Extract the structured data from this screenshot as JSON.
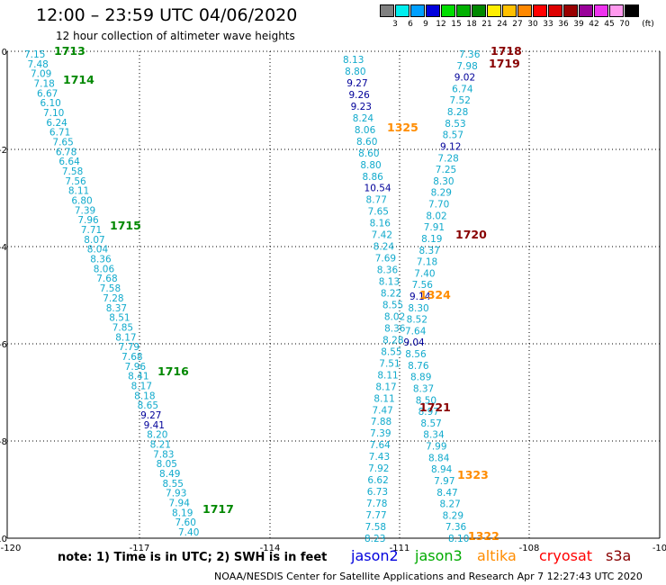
{
  "header": {
    "title": "12:00 – 23:59 UTC 04/06/2020",
    "subtitle": "12 hour collection of altimeter wave heights"
  },
  "legend": {
    "unit": "(ft)",
    "bins": [
      {
        "label": "3",
        "color": "#808080"
      },
      {
        "label": "6",
        "color": "#00eeee"
      },
      {
        "label": "9",
        "color": "#00a0ff"
      },
      {
        "label": "12",
        "color": "#0000dd"
      },
      {
        "label": "15",
        "color": "#00dd00"
      },
      {
        "label": "18",
        "color": "#00b000"
      },
      {
        "label": "21",
        "color": "#008800"
      },
      {
        "label": "24",
        "color": "#ffee00"
      },
      {
        "label": "27",
        "color": "#ffc000"
      },
      {
        "label": "30",
        "color": "#ff8800"
      },
      {
        "label": "33",
        "color": "#ff0000"
      },
      {
        "label": "36",
        "color": "#dd0000"
      },
      {
        "label": "39",
        "color": "#990000"
      },
      {
        "label": "42",
        "color": "#990099"
      },
      {
        "label": "45",
        "color": "#ee33ee"
      },
      {
        "label": "70",
        "color": "#ff99ee"
      },
      {
        "label": "",
        "color": "#000000"
      }
    ]
  },
  "axes": {
    "x_ticks": [
      "-120",
      "-117",
      "-114",
      "-111",
      "-108",
      "-10"
    ],
    "y_ticks": [
      "0",
      "-2",
      "-4",
      "-6",
      "-8",
      "-10"
    ]
  },
  "colors": {
    "cyan": "#11aacc",
    "navy": "#000099",
    "green": "#008800",
    "orange": "#ff8c00",
    "darkred": "#880000"
  },
  "tracks": {
    "t1": {
      "color": "cyan",
      "values": [
        "7.15",
        "7.48",
        "7.09",
        "7.18",
        "6.67",
        "6.10",
        "7.10",
        "6.24",
        "6.71",
        "7.65",
        "6.78",
        "6.64",
        "7.58",
        "7.56",
        "8.11",
        "6.80",
        "7.39",
        "7.96",
        "7.71",
        "8.07",
        "8.04",
        "8.36",
        "8.06",
        "7.68",
        "7.58",
        "7.28",
        "8.37",
        "8.51",
        "7.85",
        "8.17",
        "7.79",
        "7.68",
        "7.96",
        "8.41",
        "8.17",
        "8.18",
        "8.65",
        "9.27",
        "9.41",
        "8.20",
        "8.21",
        "7.83",
        "8.05",
        "8.49",
        "8.55",
        "7.93",
        "7.94",
        "8.19",
        "7.60",
        "7.40"
      ]
    },
    "t2": {
      "color": "cyan",
      "values": [
        "8.13",
        "8.80",
        "9.27",
        "9.26",
        "9.23",
        "8.24",
        "8.06",
        "8.60",
        "8.60",
        "8.80",
        "8.86",
        "10.54",
        "8.77",
        "7.65",
        "8.16",
        "7.42",
        "8.24",
        "7.69",
        "8.36",
        "8.13",
        "8.22",
        "8.55",
        "8.02",
        "8.36",
        "8.28",
        "8.55",
        "7.51",
        "8.11",
        "8.17",
        "8.11",
        "7.47",
        "7.88",
        "7.39",
        "7.64",
        "7.43",
        "7.92",
        "6.62",
        "6.73",
        "7.78",
        "7.77",
        "7.58",
        "8.23"
      ]
    },
    "t3": {
      "color": "cyan",
      "values": [
        "7.36",
        "7.98",
        "9.02",
        "6.74",
        "7.52",
        "8.28",
        "8.53",
        "8.57",
        "9.12",
        "7.28",
        "7.25",
        "8.30",
        "8.29",
        "7.70",
        "8.02",
        "7.91",
        "8.19",
        "8.37",
        "7.18",
        "7.40",
        "7.56",
        "9.14",
        "8.30",
        "8.52",
        "7.64",
        "9.04",
        "8.56",
        "8.76",
        "8.89",
        "8.37",
        "8.50",
        "8.97",
        "8.57",
        "8.34",
        "7.99",
        "8.84",
        "8.94",
        "7.97",
        "8.47",
        "8.27",
        "8.29",
        "7.36",
        "8.10"
      ]
    }
  },
  "time_labels": [
    {
      "text": "1713",
      "c": "green"
    },
    {
      "text": "1714",
      "c": "green"
    },
    {
      "text": "1715",
      "c": "green"
    },
    {
      "text": "1716",
      "c": "green"
    },
    {
      "text": "1717",
      "c": "green"
    },
    {
      "text": "1325",
      "c": "orange"
    },
    {
      "text": "1324",
      "c": "orange"
    },
    {
      "text": "1323",
      "c": "orange"
    },
    {
      "text": "1322",
      "c": "orange"
    },
    {
      "text": "1718",
      "c": "darkred"
    },
    {
      "text": "1719",
      "c": "darkred"
    },
    {
      "text": "1720",
      "c": "darkred"
    },
    {
      "text": "1721",
      "c": "darkred"
    }
  ],
  "footer": {
    "note": "note: 1) Time is in UTC; 2) SWH is in feet",
    "satellites": [
      {
        "name": "jason2",
        "color": "#0000dd"
      },
      {
        "name": "jason3",
        "color": "#00aa00"
      },
      {
        "name": "altika",
        "color": "#ff8c00"
      },
      {
        "name": "cryosat",
        "color": "#ff0000"
      },
      {
        "name": "s3a",
        "color": "#880000"
      }
    ],
    "credit": "NOAA/NESDIS Center for Satellite Applications and Research    Apr  7 12:27:43 UTC 2020"
  }
}
